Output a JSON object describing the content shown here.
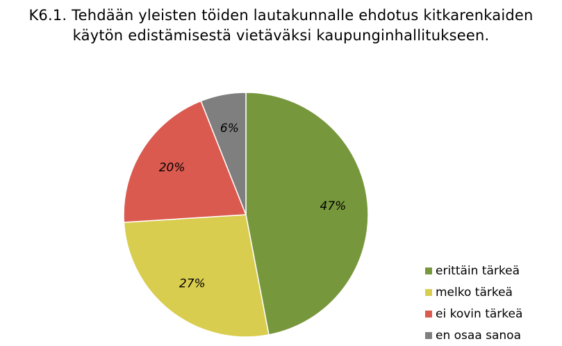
{
  "title_lines": [
    "K6.1. Tehdään yleisten töiden lautakunnalle ehdotus kitkarenkaiden",
    "käytön edistämisestä vietäväksi kaupunginhallitukseen."
  ],
  "chart_data": {
    "type": "pie",
    "categories": [
      "erittäin tärkeä",
      "melko tärkeä",
      "ei kovin tärkeä",
      "en osaa sanoa"
    ],
    "values": [
      47,
      27,
      20,
      6
    ],
    "labels": [
      "47%",
      "27%",
      "20%",
      "6%"
    ],
    "colors": [
      "#77973D",
      "#D9CD4F",
      "#DB5A4F",
      "#7F7F7F"
    ],
    "start": "12 o'clock",
    "direction": "clockwise",
    "legend_position": "bottom-right"
  }
}
